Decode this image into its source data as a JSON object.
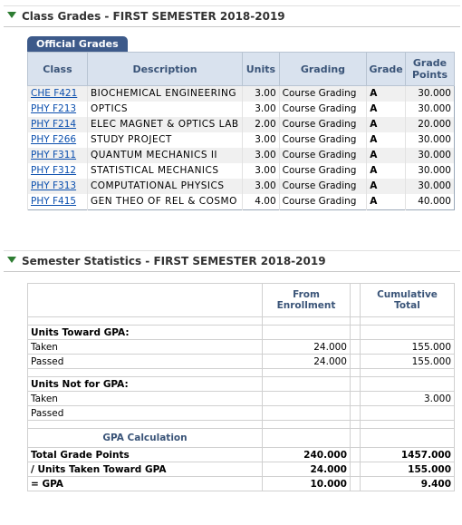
{
  "grades_section": {
    "title": "Class Grades - FIRST SEMESTER 2018-2019",
    "tab": "Official Grades",
    "headers": [
      "Class",
      "Description",
      "Units",
      "Grading",
      "Grade",
      "Grade Points"
    ],
    "rows": [
      [
        "CHE F421",
        "BIOCHEMICAL ENGINEERING",
        "3.00",
        "Course Grading",
        "A",
        "30.000"
      ],
      [
        "PHY F213",
        "OPTICS",
        "3.00",
        "Course Grading",
        "A",
        "30.000"
      ],
      [
        "PHY F214",
        "ELEC MAGNET & OPTICS LAB",
        "2.00",
        "Course Grading",
        "A",
        "20.000"
      ],
      [
        "PHY F266",
        "STUDY PROJECT",
        "3.00",
        "Course Grading",
        "A",
        "30.000"
      ],
      [
        "PHY F311",
        "QUANTUM MECHANICS II",
        "3.00",
        "Course Grading",
        "A",
        "30.000"
      ],
      [
        "PHY F312",
        "STATISTICAL MECHANICS",
        "3.00",
        "Course Grading",
        "A",
        "30.000"
      ],
      [
        "PHY F313",
        "COMPUTATIONAL PHYSICS",
        "3.00",
        "Course Grading",
        "A",
        "30.000"
      ],
      [
        "PHY F415",
        "GEN THEO OF REL & COSMO",
        "4.00",
        "Course Grading",
        "A",
        "40.000"
      ]
    ]
  },
  "stats_section": {
    "title": "Semester Statistics - FIRST SEMESTER 2018-2019",
    "headers": [
      "From Enrollment",
      "Cumulative Total"
    ],
    "rows": [
      {
        "heading": "Units Toward GPA:"
      },
      {
        "label": "Taken",
        "from_enrollment": "24.000",
        "cumulative": "155.000"
      },
      {
        "label": "Passed",
        "from_enrollment": "24.000",
        "cumulative": "155.000"
      },
      {
        "heading": "Units Not for GPA:"
      },
      {
        "label": "Taken",
        "cumulative": "3.000"
      },
      {
        "label": "Passed"
      },
      {
        "calc_heading": "GPA Calculation"
      },
      {
        "label": "Total Grade Points",
        "from_enrollment": "240.000",
        "cumulative": "1457.000"
      },
      {
        "label": "/  Units Taken Toward GPA",
        "from_enrollment": "24.000",
        "cumulative": "155.000"
      },
      {
        "label": "= GPA",
        "from_enrollment": "10.000",
        "cumulative": "9.400"
      }
    ]
  }
}
